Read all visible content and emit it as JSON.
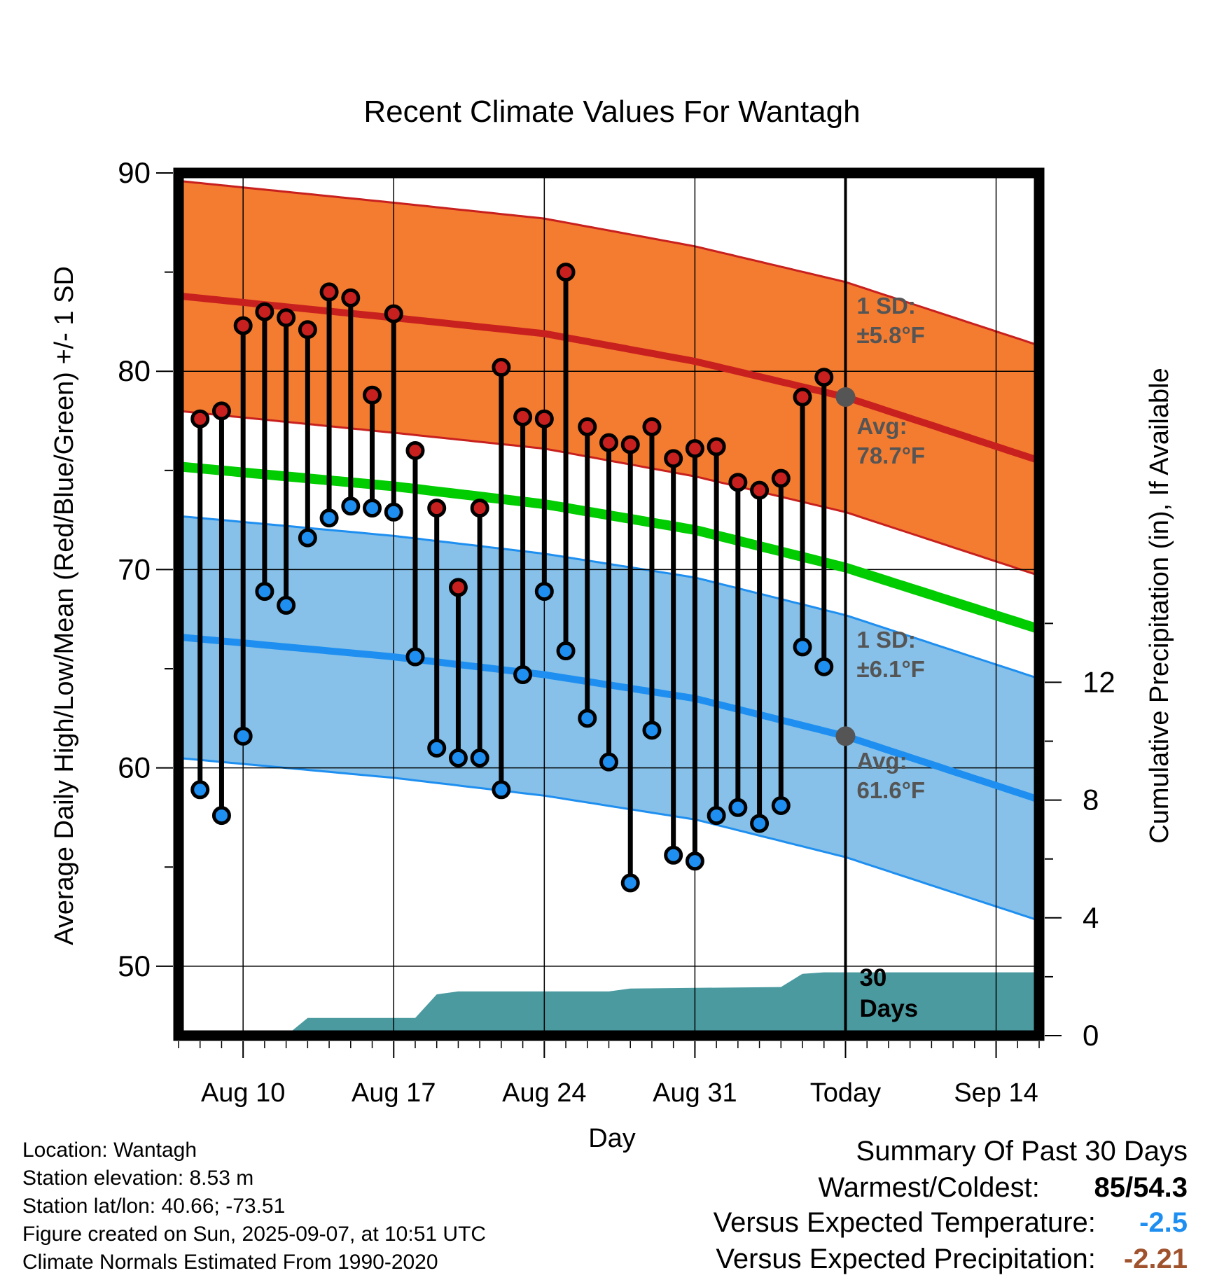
{
  "chart_data": {
    "type": "line",
    "title": "Recent Climate Values For Wantagh",
    "xlabel": "Day",
    "ylabel": "Average Daily High/Low/Mean (Red/Blue/Green) +/- 1 SD",
    "y2label": "Cumulative Precipitation (in), If Available",
    "ylim": [
      46.5,
      90
    ],
    "y2lim": [
      0,
      29.3
    ],
    "y_ticks": [
      "90",
      "80",
      "70",
      "60",
      "50"
    ],
    "y2_ticks": [
      "12",
      "8",
      "4",
      "0"
    ],
    "x_ticks": [
      {
        "date": "2025-08-10",
        "label": "Aug 10"
      },
      {
        "date": "2025-08-17",
        "label": "Aug 17"
      },
      {
        "date": "2025-08-24",
        "label": "Aug 24"
      },
      {
        "date": "2025-08-31",
        "label": "Aug 31"
      },
      {
        "date": "2025-09-07",
        "label": "Today"
      },
      {
        "date": "2025-09-14",
        "label": "Sep 14"
      }
    ],
    "x_range": [
      "2025-08-07",
      "2025-09-16"
    ],
    "grid": true,
    "today": "2025-09-07",
    "normals": {
      "dates": [
        "2025-08-07",
        "2025-08-17",
        "2025-08-24",
        "2025-08-31",
        "2025-09-07",
        "2025-09-16"
      ],
      "high_avg": [
        83.8,
        82.7,
        81.9,
        80.5,
        78.7,
        75.5
      ],
      "high_sd": 5.8,
      "low_avg": [
        66.6,
        65.6,
        64.7,
        63.5,
        61.6,
        58.4
      ],
      "low_sd": 6.1,
      "mean_avg": [
        75.2,
        74.2,
        73.3,
        72.0,
        70.1,
        67.0
      ]
    },
    "series": [
      {
        "name": "High",
        "color": "#c8201e",
        "dates": [
          "2025-08-08",
          "2025-08-09",
          "2025-08-10",
          "2025-08-11",
          "2025-08-12",
          "2025-08-13",
          "2025-08-14",
          "2025-08-15",
          "2025-08-16",
          "2025-08-17",
          "2025-08-18",
          "2025-08-19",
          "2025-08-20",
          "2025-08-21",
          "2025-08-22",
          "2025-08-23",
          "2025-08-24",
          "2025-08-25",
          "2025-08-26",
          "2025-08-27",
          "2025-08-28",
          "2025-08-29",
          "2025-08-30",
          "2025-08-31",
          "2025-09-01",
          "2025-09-02",
          "2025-09-03",
          "2025-09-04",
          "2025-09-05",
          "2025-09-06"
        ],
        "values": [
          77.6,
          78.0,
          82.3,
          83.0,
          82.7,
          82.1,
          84.0,
          83.7,
          78.8,
          82.9,
          76.0,
          73.1,
          69.1,
          73.1,
          80.2,
          77.7,
          77.6,
          85.0,
          77.2,
          76.4,
          76.3,
          77.2,
          75.6,
          76.1,
          76.2,
          74.4,
          74.0,
          74.6,
          78.7,
          79.7
        ]
      },
      {
        "name": "Low",
        "color": "#1e8ff0",
        "dates": [
          "2025-08-08",
          "2025-08-09",
          "2025-08-10",
          "2025-08-11",
          "2025-08-12",
          "2025-08-13",
          "2025-08-14",
          "2025-08-15",
          "2025-08-16",
          "2025-08-17",
          "2025-08-18",
          "2025-08-19",
          "2025-08-20",
          "2025-08-21",
          "2025-08-22",
          "2025-08-23",
          "2025-08-24",
          "2025-08-25",
          "2025-08-26",
          "2025-08-27",
          "2025-08-28",
          "2025-08-29",
          "2025-08-30",
          "2025-08-31",
          "2025-09-01",
          "2025-09-02",
          "2025-09-03",
          "2025-09-04",
          "2025-09-05",
          "2025-09-06"
        ],
        "values": [
          58.9,
          57.6,
          61.6,
          68.9,
          68.2,
          71.6,
          72.6,
          73.2,
          73.1,
          72.9,
          65.6,
          61.0,
          60.5,
          60.5,
          58.9,
          64.7,
          68.9,
          65.9,
          62.5,
          60.3,
          54.2,
          61.9,
          55.6,
          55.3,
          57.6,
          58.0,
          57.2,
          58.1,
          66.1,
          65.1
        ]
      }
    ],
    "precipitation": {
      "name": "Cumulative Precipitation",
      "dates": [
        "2025-08-12",
        "2025-08-13",
        "2025-08-18",
        "2025-08-19",
        "2025-08-20",
        "2025-08-27",
        "2025-08-28",
        "2025-09-04",
        "2025-09-05",
        "2025-09-06",
        "2025-09-16"
      ],
      "values": [
        0.0,
        0.6,
        0.6,
        1.4,
        1.5,
        1.5,
        1.6,
        1.65,
        2.1,
        2.15,
        2.15
      ]
    },
    "annotations": {
      "high_sd_label": "1 SD:",
      "high_sd_value": "±5.8°F",
      "high_avg_label": "Avg:",
      "high_avg_value": "78.7°F",
      "low_sd_label": "1 SD:",
      "low_sd_value": "±6.1°F",
      "low_avg_label": "Avg:",
      "low_avg_value": "61.6°F",
      "days_line1": "30",
      "days_line2": "Days"
    }
  },
  "colors": {
    "high_band": "#f47c30",
    "high_line": "#c8201e",
    "low_band": "#87c1e9",
    "low_line": "#1e8ff0",
    "mean_line": "#00cc00",
    "precip": "#4a9aa0",
    "annotation": "#555555",
    "versus_temp": "#1e8ff0",
    "versus_precip": "#a0522d"
  },
  "info": {
    "location": "Location: Wantagh",
    "elevation": "Station elevation: 8.53 m",
    "latlon": "Station lat/lon: 40.66; -73.51",
    "created": "Figure created on Sun, 2025-09-07, at 10:51 UTC",
    "normals": "Climate Normals Estimated From 1990-2020"
  },
  "summary": {
    "title": "Summary Of Past 30 Days",
    "warmest_label": "Warmest/Coldest:",
    "warmest_value": "85/54.3",
    "temp_label": "Versus Expected Temperature:",
    "temp_value": "-2.5",
    "precip_label": "Versus Expected Precipitation:",
    "precip_value": "-2.21"
  }
}
